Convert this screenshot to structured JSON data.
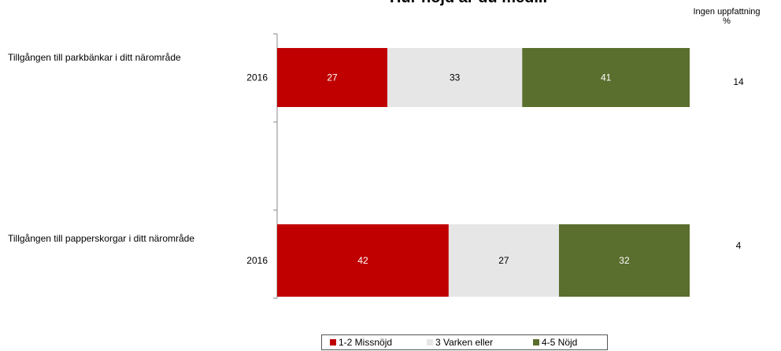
{
  "chart_data": {
    "type": "bar",
    "orientation": "horizontal",
    "stacked": true,
    "title": "Hur nöjd är du med...",
    "ingen_header": "Ingen uppfattning",
    "ingen_unit": "%",
    "categories": [
      "Tillgången till parkbänkar i ditt närområde",
      "Tillgången till papperskorgar i ditt närområde"
    ],
    "year_labels": [
      "2016",
      "2016"
    ],
    "series": [
      {
        "name": "1-2 Missnöjd",
        "color": "#c00000",
        "label_color": "#ffffff",
        "values": [
          27,
          42
        ]
      },
      {
        "name": "3 Varken eller",
        "color": "#e6e6e6",
        "label_color": "#000000",
        "values": [
          33,
          27
        ]
      },
      {
        "name": "4-5 Nöjd",
        "color": "#5a6e2d",
        "label_color": "#ffffff",
        "values": [
          41,
          32
        ]
      }
    ],
    "ingen_uppfattning": [
      14,
      4
    ],
    "legend_position": "bottom",
    "grid": false
  }
}
